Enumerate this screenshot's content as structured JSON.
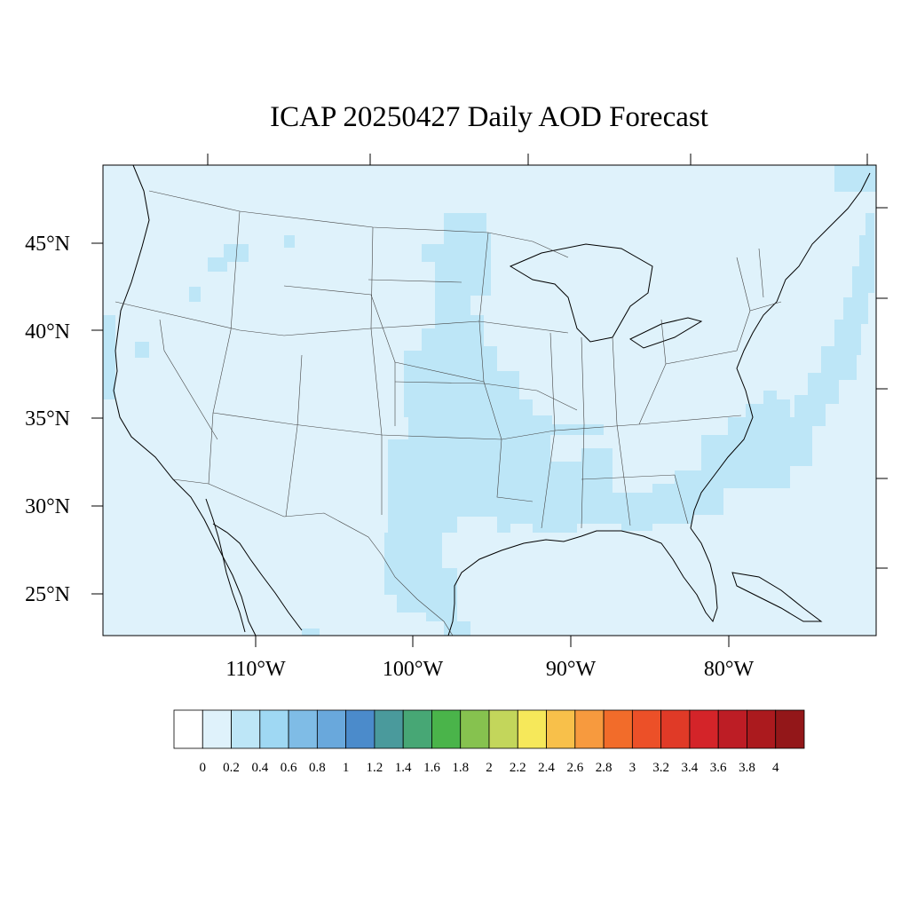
{
  "title": "ICAP 20250427 Daily AOD Forecast",
  "colors": {
    "ocean_background": "#dff2fb",
    "aod_0_2_to_0_4": "#bde6f7",
    "coastline": "#000000",
    "state_border": "#444444"
  },
  "lat_labels": [
    "45°N",
    "40°N",
    "35°N",
    "30°N",
    "25°N"
  ],
  "lon_labels": [
    "110°W",
    "100°W",
    "90°W",
    "80°W"
  ],
  "colorbar": {
    "colors": [
      "#ffffff",
      "#dff2fb",
      "#bde6f7",
      "#9fd8f3",
      "#7fbce6",
      "#69a8dc",
      "#4b8bcb",
      "#4a9a9c",
      "#47a775",
      "#4ab44a",
      "#86c24f",
      "#c3d65b",
      "#f6e85a",
      "#f8c04a",
      "#f79a3e",
      "#f26c2a",
      "#ec5028",
      "#e03a27",
      "#d42429",
      "#bd1d25",
      "#ab1a1e",
      "#931719"
    ],
    "labels": [
      "0",
      "0.2",
      "0.4",
      "0.6",
      "0.8",
      "1",
      "1.2",
      "1.4",
      "1.6",
      "1.8",
      "2",
      "2.2",
      "2.4",
      "2.6",
      "2.8",
      "3",
      "3.2",
      "3.4",
      "3.6",
      "3.8",
      "4"
    ]
  }
}
